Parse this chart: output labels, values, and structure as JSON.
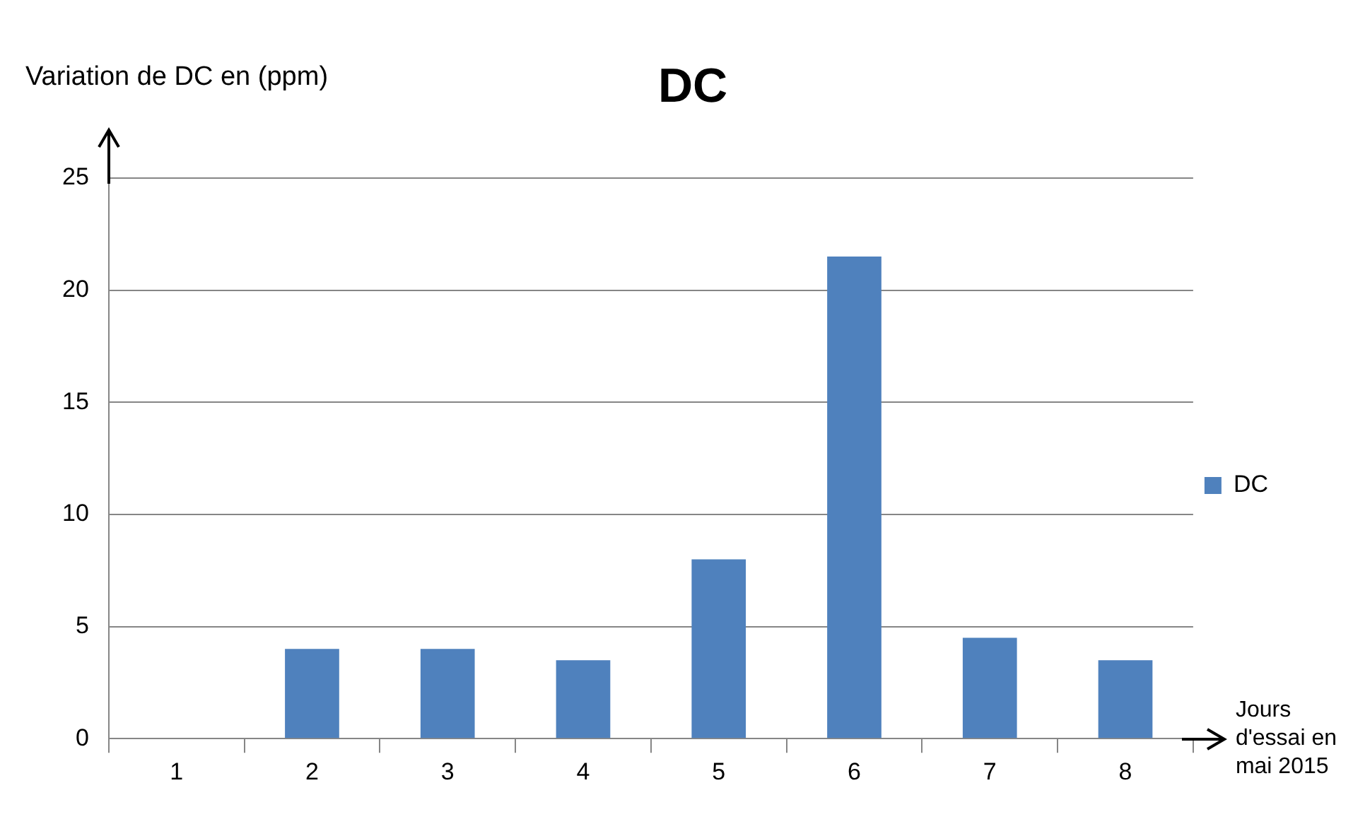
{
  "chart_data": {
    "type": "bar",
    "title": "DC",
    "ylabel": "Variation de DC en (ppm)",
    "xlabel": "Jours d'essai en mai 2015",
    "categories": [
      "1",
      "2",
      "3",
      "4",
      "5",
      "6",
      "7",
      "8"
    ],
    "series": [
      {
        "name": "DC",
        "color": "#4f81bd",
        "values": [
          0,
          4,
          4,
          3.5,
          8,
          21.5,
          4.5,
          3.5
        ]
      }
    ],
    "ylim": [
      0,
      25
    ],
    "yticks": [
      0,
      5,
      10,
      15,
      20,
      25
    ],
    "grid": "y",
    "legend": "right"
  }
}
